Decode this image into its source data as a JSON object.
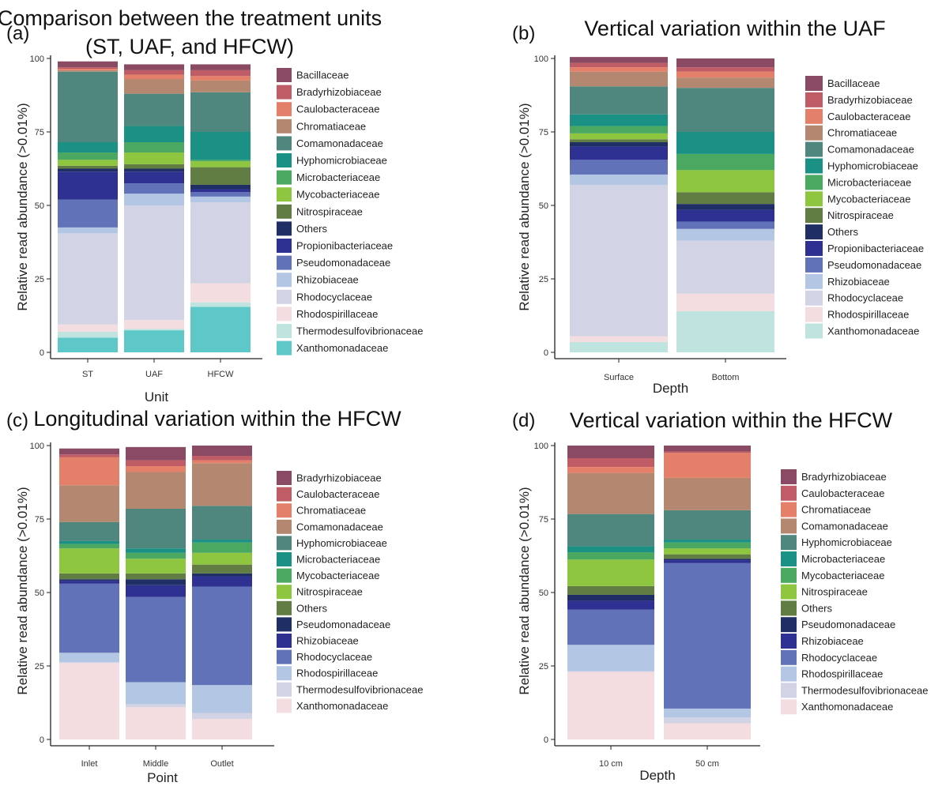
{
  "chart_data": [
    {
      "type": "bar",
      "stacked": true,
      "panel": "(a)",
      "title": "Comparison between the treatment units\n(ST, UAF, and HFCW)",
      "xlabel": "Unit",
      "ylabel": "Relative read abundance (>0.01%)",
      "ylim": [
        0,
        100
      ],
      "yticks": [
        "0",
        "25",
        "50",
        "75",
        "100"
      ],
      "categories": [
        "ST",
        "UAF",
        "HFCW"
      ],
      "legend": "right",
      "series": [
        {
          "name": "Xanthomonadaceae",
          "color": "#5ec8c8",
          "values": [
            5,
            7.5,
            15.5
          ]
        },
        {
          "name": "Thermodesulfovibrionaceae",
          "color": "#bfe3df",
          "values": [
            2,
            0.5,
            1.5
          ]
        },
        {
          "name": "Rhodospirillaceae",
          "color": "#f3dde1",
          "values": [
            2.5,
            3,
            6.5
          ]
        },
        {
          "name": "Rhodocyclaceae",
          "color": "#d3d3e6",
          "values": [
            31,
            39,
            27.5
          ]
        },
        {
          "name": "Rhizobiaceae",
          "color": "#b3c6e4",
          "values": [
            2,
            4,
            2
          ]
        },
        {
          "name": "Pseudomonadaceae",
          "color": "#6272b8",
          "values": [
            9.5,
            3.5,
            1.5
          ]
        },
        {
          "name": "Propionibacteriaceae",
          "color": "#2e3192",
          "values": [
            9.5,
            4,
            1
          ]
        },
        {
          "name": "Others",
          "color": "#1f2f66",
          "values": [
            1,
            1,
            1.5
          ]
        },
        {
          "name": "Nitrospiraceae",
          "color": "#617d43",
          "values": [
            1,
            1.5,
            6
          ]
        },
        {
          "name": "Mycobacteriaceae",
          "color": "#8ec63f",
          "values": [
            2,
            4,
            2
          ]
        },
        {
          "name": "Microbacteriaceae",
          "color": "#4aa860",
          "values": [
            2.5,
            3.5,
            0.5
          ]
        },
        {
          "name": "Hyphomicrobiaceae",
          "color": "#1a9184",
          "values": [
            3.5,
            5.5,
            9.5
          ]
        },
        {
          "name": "Comamonadaceae",
          "color": "#4f877e",
          "values": [
            24,
            11,
            13.5
          ]
        },
        {
          "name": "Chromatiaceae",
          "color": "#b48770",
          "values": [
            0.5,
            5,
            4
          ]
        },
        {
          "name": "Caulobacteraceae",
          "color": "#e4806a",
          "values": [
            0.5,
            1.5,
            1.5
          ]
        },
        {
          "name": "Bradyrhizobiaceae",
          "color": "#c05c66",
          "values": [
            0.5,
            1.5,
            2
          ]
        },
        {
          "name": "Bacillaceae",
          "color": "#8a4a63",
          "values": [
            2,
            2,
            2
          ]
        }
      ]
    },
    {
      "type": "bar",
      "stacked": true,
      "panel": "(b)",
      "title": "Vertical variation within the UAF",
      "xlabel": "Depth",
      "ylabel": "Relative read abundance (>0.01%)",
      "ylim": [
        0,
        100
      ],
      "yticks": [
        "0",
        "25",
        "50",
        "75",
        "100"
      ],
      "categories": [
        "Surface",
        "Bottom"
      ],
      "legend": "right",
      "series": [
        {
          "name": "Xanthomonadaceae",
          "color": "#bfe3df",
          "values": [
            3.5,
            14
          ]
        },
        {
          "name": "Rhodospirillaceae",
          "color": "#f3dde1",
          "values": [
            2,
            6
          ]
        },
        {
          "name": "Rhodocyclaceae",
          "color": "#d3d3e6",
          "values": [
            51.5,
            18
          ]
        },
        {
          "name": "Rhizobiaceae",
          "color": "#b3c6e4",
          "values": [
            3.5,
            4
          ]
        },
        {
          "name": "Pseudomonadaceae",
          "color": "#6272b8",
          "values": [
            5,
            2.5
          ]
        },
        {
          "name": "Propionibacteriaceae",
          "color": "#2e3192",
          "values": [
            4.5,
            4
          ]
        },
        {
          "name": "Others",
          "color": "#1f2f66",
          "values": [
            1.5,
            2
          ]
        },
        {
          "name": "Nitrospiraceae",
          "color": "#617d43",
          "values": [
            1,
            4
          ]
        },
        {
          "name": "Mycobacteriaceae",
          "color": "#8ec63f",
          "values": [
            2,
            7.5
          ]
        },
        {
          "name": "Microbacteriaceae",
          "color": "#4aa860",
          "values": [
            2.5,
            5.5
          ]
        },
        {
          "name": "Hyphomicrobiaceae",
          "color": "#1a9184",
          "values": [
            4,
            7.5
          ]
        },
        {
          "name": "Comamonadaceae",
          "color": "#4f877e",
          "values": [
            9.5,
            15
          ]
        },
        {
          "name": "Chromatiaceae",
          "color": "#b48770",
          "values": [
            5,
            3.5
          ]
        },
        {
          "name": "Caulobacteraceae",
          "color": "#e4806a",
          "values": [
            1.5,
            2
          ]
        },
        {
          "name": "Bradyrhizobiaceae",
          "color": "#c05c66",
          "values": [
            1.5,
            1.5
          ]
        },
        {
          "name": "Bacillaceae",
          "color": "#8a4a63",
          "values": [
            2,
            3
          ]
        }
      ]
    },
    {
      "type": "bar",
      "stacked": true,
      "panel": "(c)",
      "title": "Longitudinal variation within the HFCW",
      "xlabel": "Point",
      "ylabel": "Relative read abundance (>0.01%)",
      "ylim": [
        0,
        100
      ],
      "yticks": [
        "0",
        "25",
        "50",
        "75",
        "100"
      ],
      "categories": [
        "Inlet",
        "Middle",
        "Outlet"
      ],
      "legend": "right",
      "series": [
        {
          "name": "Xanthomonadaceae",
          "color": "#f3dde1",
          "values": [
            26,
            11,
            7
          ]
        },
        {
          "name": "Thermodesulfovibrionaceae",
          "color": "#d3d3e6",
          "values": [
            0.3,
            1,
            2
          ]
        },
        {
          "name": "Rhodospirillaceae",
          "color": "#b3c6e4",
          "values": [
            3.2,
            7.5,
            9.5
          ]
        },
        {
          "name": "Rhodocyclaceae",
          "color": "#6272b8",
          "values": [
            23.5,
            29,
            33.5
          ]
        },
        {
          "name": "Rhizobiaceae",
          "color": "#2e3192",
          "values": [
            1,
            4,
            3.5
          ]
        },
        {
          "name": "Pseudomonadaceae",
          "color": "#1f2f66",
          "values": [
            0.5,
            2,
            1
          ]
        },
        {
          "name": "Others",
          "color": "#617d43",
          "values": [
            2,
            2,
            3
          ]
        },
        {
          "name": "Nitrospiraceae",
          "color": "#8ec63f",
          "values": [
            8.5,
            5,
            4
          ]
        },
        {
          "name": "Mycobacteriaceae",
          "color": "#4aa860",
          "values": [
            1.5,
            2,
            3.5
          ]
        },
        {
          "name": "Microbacteriaceae",
          "color": "#1a9184",
          "values": [
            1,
            1.5,
            1
          ]
        },
        {
          "name": "Hyphomicrobiaceae",
          "color": "#4f877e",
          "values": [
            6.5,
            13.5,
            11.5
          ]
        },
        {
          "name": "Comamonadaceae",
          "color": "#b48770",
          "values": [
            12.5,
            12.5,
            14.5
          ]
        },
        {
          "name": "Chromatiaceae",
          "color": "#e4806a",
          "values": [
            9.5,
            2,
            1
          ]
        },
        {
          "name": "Caulobacteraceae",
          "color": "#c05c66",
          "values": [
            1,
            2,
            1.5
          ]
        },
        {
          "name": "Bradyrhizobiaceae",
          "color": "#8a4a63",
          "values": [
            2,
            4.5,
            3.5
          ]
        }
      ]
    },
    {
      "type": "bar",
      "stacked": true,
      "panel": "(d)",
      "title": "Vertical variation within the HFCW",
      "xlabel": "Depth",
      "ylabel": "Relative read abundance (>0.01%)",
      "ylim": [
        0,
        100
      ],
      "yticks": [
        "0",
        "25",
        "50",
        "75",
        "100"
      ],
      "categories": [
        "10 cm",
        "50 cm"
      ],
      "legend": "right",
      "series": [
        {
          "name": "Xanthomonadaceae",
          "color": "#f3dde1",
          "values": [
            23,
            5.5
          ]
        },
        {
          "name": "Thermodesulfovibrionaceae",
          "color": "#d3d3e6",
          "values": [
            0.2,
            2
          ]
        },
        {
          "name": "Rhodospirillaceae",
          "color": "#b3c6e4",
          "values": [
            9,
            3
          ]
        },
        {
          "name": "Rhodocyclaceae",
          "color": "#6272b8",
          "values": [
            12,
            49.5
          ]
        },
        {
          "name": "Rhizobiaceae",
          "color": "#2e3192",
          "values": [
            3,
            1
          ]
        },
        {
          "name": "Pseudomonadaceae",
          "color": "#1f2f66",
          "values": [
            2,
            0.5
          ]
        },
        {
          "name": "Others",
          "color": "#617d43",
          "values": [
            3,
            1.5
          ]
        },
        {
          "name": "Nitrospiraceae",
          "color": "#8ec63f",
          "values": [
            9,
            2
          ]
        },
        {
          "name": "Mycobacteriaceae",
          "color": "#4aa860",
          "values": [
            2.5,
            2
          ]
        },
        {
          "name": "Microbacteriaceae",
          "color": "#1a9184",
          "values": [
            2,
            1
          ]
        },
        {
          "name": "Hyphomicrobiaceae",
          "color": "#4f877e",
          "values": [
            11,
            10
          ]
        },
        {
          "name": "Comamonadaceae",
          "color": "#b48770",
          "values": [
            14,
            11
          ]
        },
        {
          "name": "Chromatiaceae",
          "color": "#e4806a",
          "values": [
            2,
            8.5
          ]
        },
        {
          "name": "Caulobacteraceae",
          "color": "#c05c66",
          "values": [
            3,
            0.5
          ]
        },
        {
          "name": "Bradyrhizobiaceae",
          "color": "#8a4a63",
          "values": [
            4.3,
            2
          ]
        }
      ]
    }
  ]
}
